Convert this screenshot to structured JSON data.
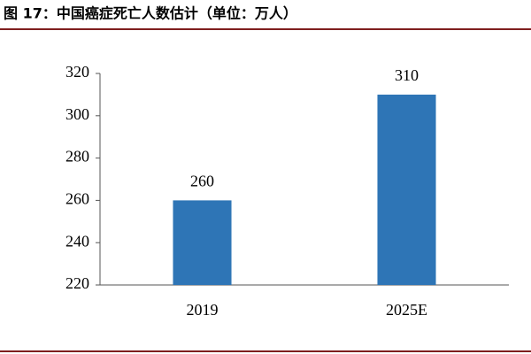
{
  "chart_data": {
    "type": "bar",
    "title": "图 17：中国癌症死亡人数估计（单位：万人）",
    "categories": [
      "2019",
      "2025E"
    ],
    "values": [
      260,
      310
    ],
    "color": "#2e75b6",
    "ylim": [
      220,
      320
    ],
    "yticks": [
      220,
      240,
      260,
      280,
      300,
      320
    ],
    "grid": false
  }
}
